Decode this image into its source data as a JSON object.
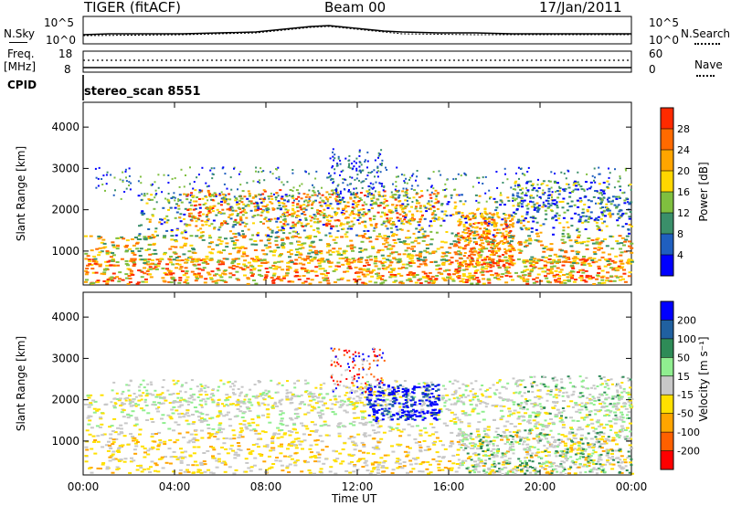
{
  "header": {
    "radar": "TIGER (fitACF)",
    "beam": "Beam 00",
    "date": "17/Jan/2011"
  },
  "sky_panel": {
    "left_label": "N.Sky",
    "right_label": "N.Search",
    "left_ticks": [
      "10^5",
      "10^0"
    ],
    "right_ticks": [
      "10^5",
      "10^0"
    ]
  },
  "freq_panel": {
    "left_label_top": "Freq.",
    "left_label_bottom": "[MHz]",
    "right_label": "Nave",
    "left_ticks": [
      "18",
      "8"
    ],
    "right_ticks": [
      "60",
      "0"
    ]
  },
  "cpid_panel": {
    "label": "CPID",
    "text": "stereo_scan 8551"
  },
  "time_axis": {
    "xlabel": "Time UT",
    "ticks": [
      "00:00",
      "04:00",
      "08:00",
      "12:00",
      "16:00",
      "20:00",
      "00:00"
    ]
  },
  "colors": {
    "power_scale": [
      "#0000ff",
      "#1f5fbf",
      "#3a8f6a",
      "#7fbf3f",
      "#ffd700",
      "#ffa500",
      "#ff6a00",
      "#ff2a00"
    ],
    "velocity_scale": [
      "#0000ff",
      "#2060a0",
      "#2e8b57",
      "#90ee90",
      "#c8c8c8",
      "#ffe000",
      "#ffa500",
      "#ff6000",
      "#ff0000"
    ]
  },
  "chart_data": [
    {
      "type": "heatmap",
      "title": "",
      "xlabel": "Time UT",
      "ylabel": "Slant Range [km]",
      "y_ticks": [
        1000,
        2000,
        3000,
        4000
      ],
      "x_range_hours": [
        0,
        24
      ],
      "ylim": [
        180,
        4600
      ],
      "colorbar": {
        "label": "Power [dB]",
        "ticks": [
          "4",
          "8",
          "12",
          "16",
          "20",
          "24",
          "28"
        ],
        "range": [
          0,
          30
        ]
      }
    },
    {
      "type": "heatmap",
      "title": "",
      "xlabel": "Time UT",
      "ylabel": "Slant Range [km]",
      "y_ticks": [
        1000,
        2000,
        3000,
        4000
      ],
      "x_range_hours": [
        0,
        24
      ],
      "ylim": [
        180,
        4600
      ],
      "colorbar": {
        "label": "Velocity [m s⁻¹]",
        "ticks": [
          "200",
          "100",
          "50",
          "15",
          "-15",
          "-50",
          "-100",
          "-200"
        ]
      }
    }
  ]
}
